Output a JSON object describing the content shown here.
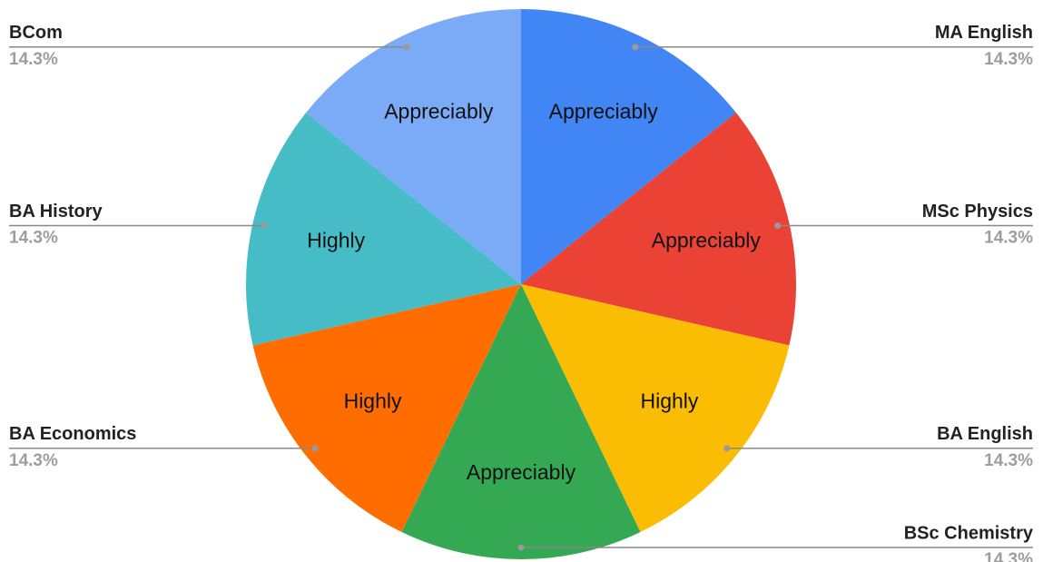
{
  "chart_data": {
    "type": "pie",
    "categories": [
      "MA English",
      "MSc Physics",
      "BA English",
      "BSc Chemistry",
      "BA Economics",
      "BA History",
      "BCom"
    ],
    "values": [
      14.3,
      14.3,
      14.3,
      14.3,
      14.3,
      14.3,
      14.3
    ],
    "value_labels": [
      "14.3%",
      "14.3%",
      "14.3%",
      "14.3%",
      "14.3%",
      "14.3%",
      "14.3%"
    ],
    "slice_labels": [
      "Appreciably",
      "Appreciably",
      "Highly",
      "Appreciably",
      "Highly",
      "Highly",
      "Appreciably"
    ],
    "colors": [
      "#4285f4",
      "#ea4335",
      "#fbbc04",
      "#34a853",
      "#ff6d01",
      "#46bdc6",
      "#7baaf7"
    ]
  }
}
